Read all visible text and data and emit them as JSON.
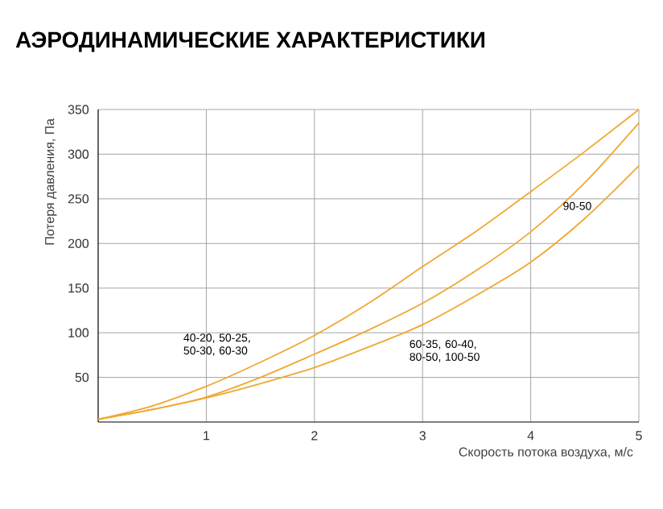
{
  "chart_data": {
    "type": "line",
    "title": "АЭРОДИНАМИЧЕСКИЕ ХАРАКТЕРИСТИКИ",
    "xlabel": "Скорость потока воздуха, м/с",
    "ylabel": "Потеря давления, Па",
    "x": [
      0,
      0.5,
      1,
      1.5,
      2,
      2.5,
      3,
      3.5,
      4,
      4.5,
      5
    ],
    "series": [
      {
        "name": "40-20, 50-25, 50-30, 60-30",
        "color": "#f0a830",
        "values": [
          3,
          18,
          40,
          67,
          97,
          133,
          174,
          214,
          258,
          303,
          350
        ]
      },
      {
        "name": "90-50",
        "color": "#f0a830",
        "values": [
          3,
          14,
          28,
          50,
          76,
          103,
          133,
          170,
          213,
          268,
          335
        ]
      },
      {
        "name": "60-35, 60-40, 80-50, 100-50",
        "color": "#f0a830",
        "values": [
          3,
          14,
          27,
          43,
          61,
          84,
          109,
          142,
          179,
          228,
          287
        ]
      }
    ],
    "xlim": [
      0,
      5
    ],
    "ylim": [
      0,
      350
    ],
    "xticks": [
      1,
      2,
      3,
      4,
      5
    ],
    "yticks": [
      50,
      100,
      150,
      200,
      250,
      300,
      350
    ],
    "grid": true,
    "legend": false,
    "marker": "none",
    "line_style": "solid"
  }
}
